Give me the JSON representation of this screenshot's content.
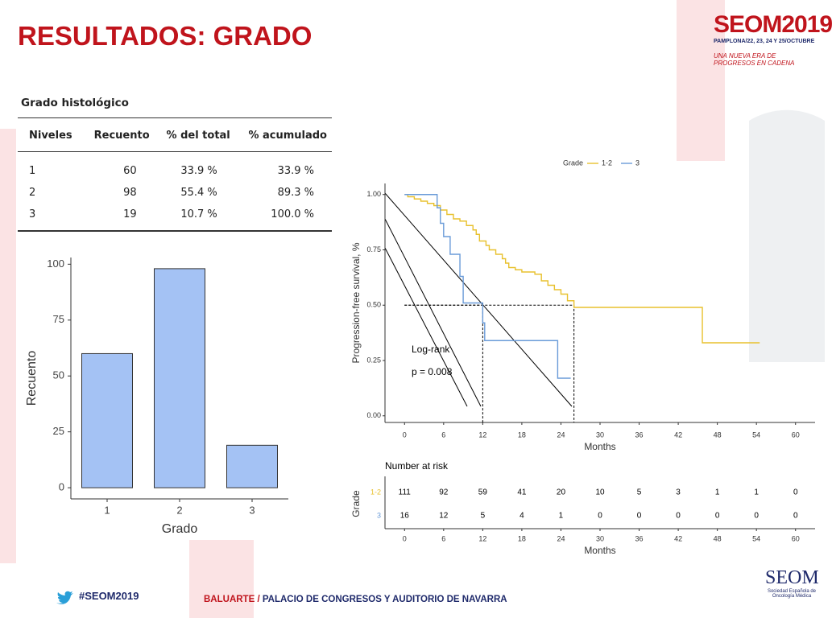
{
  "title": "RESULTADOS: GRADO",
  "logo": {
    "name": "SEOM2019",
    "dates": "PAMPLONA/22, 23, 24 Y 25/OCTUBRE",
    "tagline": "UNA NUEVA ERA DE PROGRESOS EN CADENA"
  },
  "table": {
    "title": "Grado histológico",
    "columns": [
      "Niveles",
      "Recuento",
      "% del total",
      "% acumulado"
    ],
    "rows": [
      [
        "1",
        "60",
        "33.9 %",
        "33.9 %"
      ],
      [
        "2",
        "98",
        "55.4 %",
        "89.3 %"
      ],
      [
        "3",
        "19",
        "10.7 %",
        "100.0 %"
      ]
    ]
  },
  "chart_data": [
    {
      "type": "bar",
      "categories": [
        "1",
        "2",
        "3"
      ],
      "values": [
        60,
        98,
        19
      ],
      "color": "#a4c2f4",
      "xlabel": "Grado",
      "ylabel": "Recuento",
      "ylim": [
        -5,
        103
      ],
      "yticks": [
        0,
        25,
        50,
        75,
        100
      ]
    },
    {
      "type": "line",
      "step": true,
      "xlabel": "Months",
      "ylabel": "Progression-free survival, %",
      "legend_title": "Grade",
      "legend": "top",
      "xlim": [
        -3,
        63
      ],
      "ylim": [
        -0.03,
        1.05
      ],
      "xticks": [
        0,
        6,
        12,
        18,
        24,
        30,
        36,
        42,
        48,
        54,
        60
      ],
      "yticks": [
        {
          "value": 0,
          "label": "0.00"
        },
        {
          "value": 0.25,
          "label": "0.25"
        },
        {
          "value": 0.5,
          "label": "0.50"
        },
        {
          "value": 0.75,
          "label": "0.75"
        },
        {
          "value": 1,
          "label": "1.00"
        }
      ],
      "series": [
        {
          "name": "1-2",
          "color": "#e8c12e",
          "median": 26,
          "x": [
            0,
            0.5,
            1.5,
            2.5,
            3.5,
            4.5,
            5.5,
            6.5,
            7.5,
            8.5,
            9.5,
            10.5,
            11,
            11.5,
            12.5,
            13,
            14,
            15,
            15.5,
            16,
            17,
            18,
            20,
            21,
            22,
            23,
            24,
            25,
            26,
            45.7,
            54.5
          ],
          "values": [
            1,
            0.99,
            0.98,
            0.97,
            0.96,
            0.95,
            0.93,
            0.91,
            0.89,
            0.88,
            0.86,
            0.84,
            0.82,
            0.79,
            0.77,
            0.75,
            0.73,
            0.71,
            0.69,
            0.67,
            0.66,
            0.65,
            0.64,
            0.61,
            0.59,
            0.57,
            0.55,
            0.52,
            0.49,
            0.33,
            0.33
          ]
        },
        {
          "name": "3",
          "color": "#6a9bd8",
          "median": 12,
          "x": [
            0,
            5,
            5.5,
            6,
            7,
            8.5,
            9,
            12,
            12.3,
            23.5,
            25.5
          ],
          "values": [
            1,
            0.94,
            0.87,
            0.81,
            0.73,
            0.63,
            0.51,
            0.42,
            0.34,
            0.17,
            0.17
          ]
        }
      ],
      "median_level": 0.5,
      "annotations": [
        "Log-rank",
        "p = 0.008"
      ],
      "risk_table": {
        "title": "Number at risk",
        "ylabel": "Grade",
        "xlabel": "Months",
        "rows": [
          [
            111,
            92,
            59,
            41,
            20,
            10,
            5,
            3,
            1,
            1,
            0
          ],
          [
            16,
            12,
            5,
            4,
            1,
            0,
            0,
            0,
            0,
            0,
            0
          ]
        ]
      }
    }
  ],
  "footer": {
    "hashtag": "#SEOM2019",
    "venue_a": "BALUARTE /",
    "venue_b": "PALACIO DE CONGRESOS Y AUDITORIO DE NAVARRA",
    "org": "SEOM",
    "org_sub": "Sociedad Española de Oncología Médica"
  }
}
